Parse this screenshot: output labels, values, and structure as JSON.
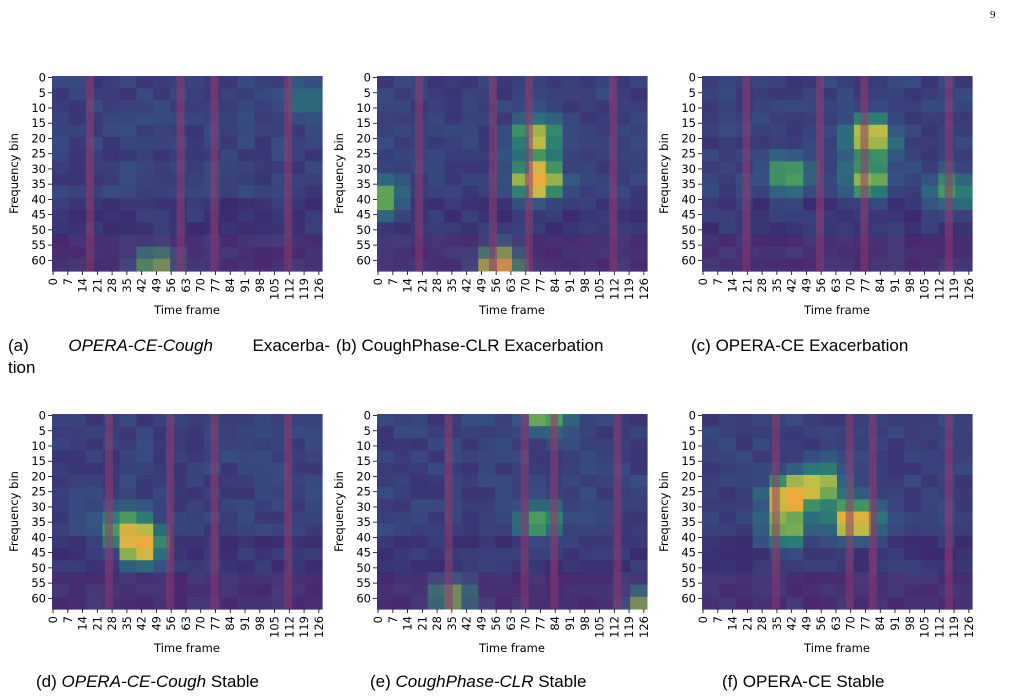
{
  "page_number": "9",
  "shared": {
    "xlabel": "Time frame",
    "ylabel": "Frequency bin",
    "x_ticks": [
      "0",
      "7",
      "14",
      "21",
      "28",
      "35",
      "42",
      "49",
      "56",
      "63",
      "70",
      "77",
      "84",
      "91",
      "98",
      "105",
      "112",
      "119",
      "126"
    ],
    "y_ticks": [
      "0",
      "5",
      "10",
      "15",
      "20",
      "25",
      "30",
      "35",
      "40",
      "45",
      "50",
      "55",
      "60"
    ]
  },
  "panels": [
    {
      "caption": {
        "tag": "(a)",
        "model": "OPERA-CE-Cough",
        "model_italic": true,
        "state": "Exacerba-",
        "continuation": "tion"
      },
      "segment_boundaries": [
        18,
        61,
        77,
        112
      ],
      "hotspots": [
        [
          48,
          62,
          0.55
        ],
        [
          120,
          8,
          0.25
        ]
      ]
    },
    {
      "caption": {
        "tag": "(b)",
        "model": "CoughPhase-CLR",
        "model_italic": false,
        "state": "Exacerbation"
      },
      "segment_boundaries": [
        20,
        55,
        72,
        112
      ],
      "hotspots": [
        [
          58,
          62,
          0.9
        ],
        [
          76,
          34,
          0.9
        ],
        [
          76,
          20,
          0.6
        ],
        [
          2,
          40,
          0.5
        ]
      ]
    },
    {
      "caption": {
        "tag": "(c)",
        "model": "OPERA-CE",
        "model_italic": false,
        "state": "Exacerbation"
      },
      "segment_boundaries": [
        21,
        56,
        77,
        117
      ],
      "hotspots": [
        [
          80,
          20,
          0.7
        ],
        [
          78,
          34,
          0.55
        ],
        [
          40,
          32,
          0.45
        ],
        [
          118,
          38,
          0.4
        ]
      ]
    },
    {
      "caption": {
        "tag": "(d)",
        "model": "OPERA-CE-Cough",
        "model_italic": true,
        "state": "Stable"
      },
      "segment_boundaries": [
        27,
        56,
        77,
        112
      ],
      "hotspots": [
        [
          42,
          43,
          0.85
        ],
        [
          34,
          37,
          0.4
        ]
      ]
    },
    {
      "caption": {
        "tag": "(e)",
        "model": "CoughPhase-CLR",
        "model_italic": true,
        "state": "Stable"
      },
      "segment_boundaries": [
        34,
        70,
        84,
        114
      ],
      "hotspots": [
        [
          36,
          60,
          0.6
        ],
        [
          80,
          0,
          0.5
        ],
        [
          78,
          35,
          0.4
        ],
        [
          126,
          63,
          0.5
        ]
      ]
    },
    {
      "caption": {
        "tag": "(f)",
        "model": "OPERA-CE",
        "model_italic": false,
        "state": "Stable"
      },
      "segment_boundaries": [
        35,
        70,
        81,
        117
      ],
      "hotspots": [
        [
          42,
          27,
          0.85
        ],
        [
          72,
          35,
          0.85
        ],
        [
          57,
          23,
          0.55
        ],
        [
          39,
          38,
          0.5
        ]
      ]
    }
  ]
}
